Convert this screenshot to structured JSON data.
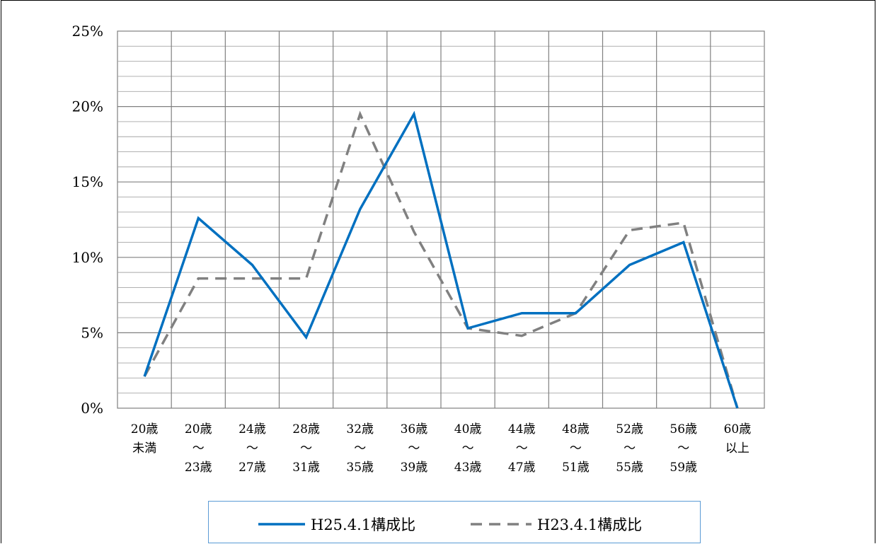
{
  "chart_data": {
    "type": "line",
    "categories": [
      "20歳\n未満",
      "20歳\n～\n23歳",
      "24歳\n～\n27歳",
      "28歳\n～\n31歳",
      "32歳\n～\n35歳",
      "36歳\n～\n39歳",
      "40歳\n～\n43歳",
      "44歳\n～\n47歳",
      "48歳\n～\n51歳",
      "52歳\n～\n55歳",
      "56歳\n～\n59歳",
      "60歳\n以上"
    ],
    "series": [
      {
        "name": "H25.4.1構成比",
        "color": "#0070c0",
        "style": "solid",
        "values": [
          2.1,
          12.6,
          9.5,
          4.7,
          13.2,
          19.5,
          5.3,
          6.3,
          6.3,
          9.5,
          11.0,
          0.0
        ]
      },
      {
        "name": "H23.4.1構成比",
        "color": "#808080",
        "style": "dashed",
        "values": [
          2.1,
          8.6,
          8.6,
          8.6,
          19.5,
          11.7,
          5.3,
          4.8,
          6.3,
          11.8,
          12.3,
          0.0
        ]
      }
    ],
    "y_tick_labels": [
      "0%",
      "5%",
      "10%",
      "15%",
      "20%",
      "25%"
    ],
    "ylim": [
      0,
      25
    ],
    "grid": true,
    "legend_position": "bottom"
  }
}
